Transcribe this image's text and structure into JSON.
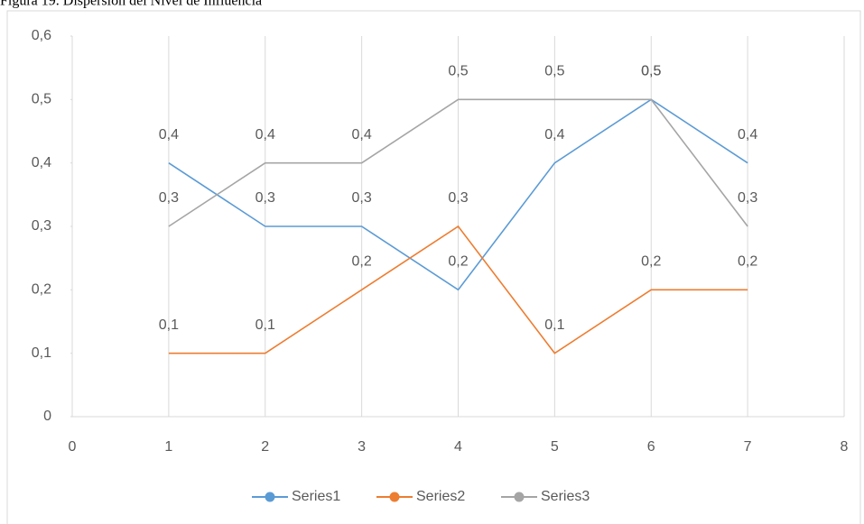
{
  "chart_data": {
    "type": "line",
    "title": "Figura 19. Dispersión del Nivel de Influencia",
    "x": [
      1,
      2,
      3,
      4,
      5,
      6,
      7
    ],
    "series": [
      {
        "name": "Series1",
        "color": "#5b9bd5",
        "values": [
          0.4,
          0.3,
          0.3,
          0.2,
          0.4,
          0.5,
          0.4
        ],
        "value_labels": [
          "0,4",
          "0,3",
          "0,3",
          "0,2",
          "0,4",
          "0,5",
          "0,4"
        ]
      },
      {
        "name": "Series2",
        "color": "#ed7d31",
        "values": [
          0.1,
          0.1,
          0.2,
          0.3,
          0.1,
          0.2,
          0.2
        ],
        "value_labels": [
          "0,1",
          "0,1",
          "0,2",
          "0,3",
          "0,1",
          "0,2",
          "0,2"
        ]
      },
      {
        "name": "Series3",
        "color": "#a5a5a5",
        "values": [
          0.3,
          0.4,
          0.4,
          0.5,
          0.5,
          0.5,
          0.3
        ],
        "value_labels": [
          "0,3",
          "0,4",
          "0,4",
          "0,5",
          "0,5",
          "0,5",
          "0,3"
        ]
      }
    ],
    "xlim": [
      0,
      8
    ],
    "xticks": [
      0,
      1,
      2,
      3,
      4,
      5,
      6,
      7,
      8
    ],
    "ylim": [
      0,
      0.6
    ],
    "yticks": [
      0,
      {
        "value": 0.1,
        "label": "0,1"
      },
      {
        "value": 0.2,
        "label": "0,2"
      },
      {
        "value": 0.3,
        "label": "0,3"
      },
      {
        "value": 0.4,
        "label": "0,4"
      },
      {
        "value": 0.5,
        "label": "0,5"
      },
      {
        "value": 0.6,
        "label": "0,6"
      }
    ],
    "grid": "x",
    "legend": "bottom"
  }
}
